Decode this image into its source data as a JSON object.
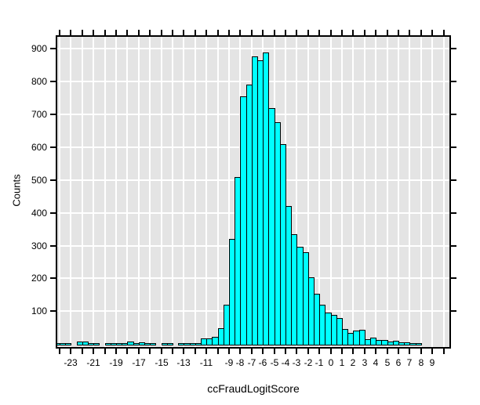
{
  "chart_data": {
    "type": "bar",
    "subtype": "histogram",
    "title": "",
    "xlabel": "ccFraudLogitScore",
    "ylabel": "Counts",
    "bin_width": 0.5,
    "xlim": [
      -24.21,
      10.51
    ],
    "ylim": [
      -9.5,
      937
    ],
    "grid": true,
    "x_major_ticks_every": 1,
    "y_tick_values": [
      100,
      200,
      300,
      400,
      500,
      600,
      700,
      800,
      900
    ],
    "x_labeled_ticks": [
      -23,
      -21,
      -19,
      -17,
      -15,
      -13,
      -11,
      -9,
      -8,
      -7,
      -6,
      -5,
      -4,
      -3,
      -2,
      -1,
      0,
      1,
      2,
      3,
      4,
      5,
      6,
      7,
      8,
      9
    ],
    "panel_bg": "#e4e4e4",
    "grid_color": "#ffffff",
    "bar_fill": "#00ffff",
    "bar_border": "#000000",
    "bins": [
      {
        "x": -24.5,
        "count": 2
      },
      {
        "x": -24.0,
        "count": 3
      },
      {
        "x": -23.5,
        "count": 2
      },
      {
        "x": -23.0,
        "count": 0
      },
      {
        "x": -22.5,
        "count": 8
      },
      {
        "x": -22.0,
        "count": 6
      },
      {
        "x": -21.5,
        "count": 2
      },
      {
        "x": -21.0,
        "count": 2
      },
      {
        "x": -20.5,
        "count": 0
      },
      {
        "x": -20.0,
        "count": 3
      },
      {
        "x": -19.5,
        "count": 3
      },
      {
        "x": -19.0,
        "count": 3
      },
      {
        "x": -18.5,
        "count": 3
      },
      {
        "x": -18.0,
        "count": 7
      },
      {
        "x": -17.5,
        "count": 3
      },
      {
        "x": -17.0,
        "count": 4
      },
      {
        "x": -16.5,
        "count": 3
      },
      {
        "x": -16.0,
        "count": 2
      },
      {
        "x": -15.5,
        "count": 0
      },
      {
        "x": -15.0,
        "count": 2
      },
      {
        "x": -14.5,
        "count": 2
      },
      {
        "x": -14.0,
        "count": 0
      },
      {
        "x": -13.5,
        "count": 2
      },
      {
        "x": -13.0,
        "count": 2
      },
      {
        "x": -12.5,
        "count": 2
      },
      {
        "x": -12.0,
        "count": 2
      },
      {
        "x": -11.5,
        "count": 17
      },
      {
        "x": -11.0,
        "count": 17
      },
      {
        "x": -10.5,
        "count": 22
      },
      {
        "x": -10.0,
        "count": 47
      },
      {
        "x": -9.5,
        "count": 120
      },
      {
        "x": -9.0,
        "count": 320
      },
      {
        "x": -8.5,
        "count": 510
      },
      {
        "x": -8.0,
        "count": 755
      },
      {
        "x": -7.5,
        "count": 790
      },
      {
        "x": -7.0,
        "count": 878
      },
      {
        "x": -6.5,
        "count": 866
      },
      {
        "x": -6.0,
        "count": 890
      },
      {
        "x": -5.5,
        "count": 720
      },
      {
        "x": -5.0,
        "count": 676
      },
      {
        "x": -4.5,
        "count": 610
      },
      {
        "x": -4.0,
        "count": 420
      },
      {
        "x": -3.5,
        "count": 335
      },
      {
        "x": -3.0,
        "count": 297
      },
      {
        "x": -2.5,
        "count": 280
      },
      {
        "x": -2.0,
        "count": 204
      },
      {
        "x": -1.5,
        "count": 154
      },
      {
        "x": -1.0,
        "count": 120
      },
      {
        "x": -0.5,
        "count": 95
      },
      {
        "x": 0.0,
        "count": 88
      },
      {
        "x": 0.5,
        "count": 80
      },
      {
        "x": 1.0,
        "count": 46
      },
      {
        "x": 1.5,
        "count": 34
      },
      {
        "x": 2.0,
        "count": 40
      },
      {
        "x": 2.5,
        "count": 42
      },
      {
        "x": 3.0,
        "count": 14
      },
      {
        "x": 3.5,
        "count": 18
      },
      {
        "x": 4.0,
        "count": 11
      },
      {
        "x": 4.5,
        "count": 13
      },
      {
        "x": 5.0,
        "count": 8
      },
      {
        "x": 5.5,
        "count": 9
      },
      {
        "x": 6.0,
        "count": 5
      },
      {
        "x": 6.5,
        "count": 4
      },
      {
        "x": 7.0,
        "count": 3
      },
      {
        "x": 7.5,
        "count": 2
      }
    ]
  }
}
